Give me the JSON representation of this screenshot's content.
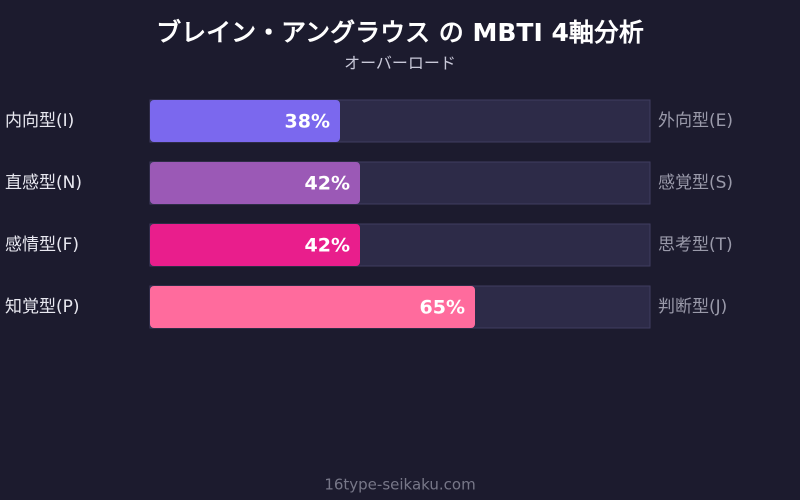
{
  "chart_data": {
    "type": "bar",
    "title": "ブレイン・アングラウス の MBTI 4軸分析",
    "subtitle": "オーバーロード",
    "categories": [
      "内向型(I)",
      "直感型(N)",
      "感情型(F)",
      "知覚型(P)"
    ],
    "right_labels": [
      "外向型(E)",
      "感覚型(S)",
      "思考型(T)",
      "判断型(J)"
    ],
    "values": [
      38,
      42,
      42,
      65
    ],
    "value_labels": [
      "38%",
      "42%",
      "42%",
      "65%"
    ],
    "colors": [
      "#7b68ee",
      "#9b59b6",
      "#e91e8c",
      "#ff6b9d"
    ],
    "xlim": [
      0,
      100
    ]
  },
  "footer": "16type-seikaku.com"
}
